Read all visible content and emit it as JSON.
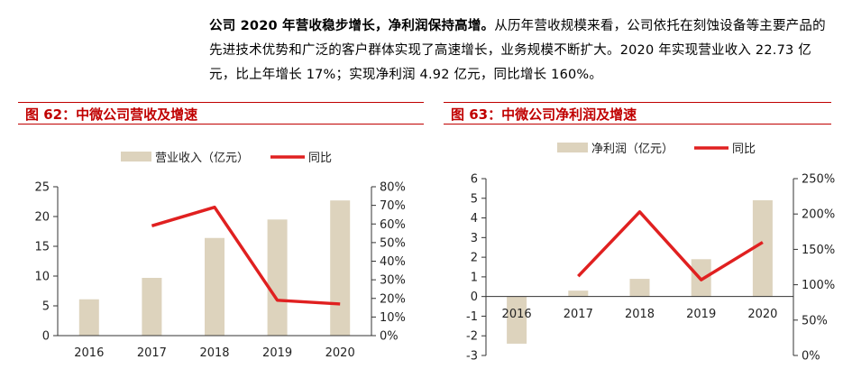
{
  "paragraph": {
    "bold": "公司 2020 年营收稳步增长，净利润保持高增。",
    "text": "从历年营收规模来看，公司依托在刻蚀设备等主要产品的先进技术优势和广泛的客户群体实现了高速增长，业务规模不断扩大。2020 年实现营业收入 22.73 亿元，比上年增长 17%；实现净利润 4.92 亿元，同比增长 160%。"
  },
  "colors": {
    "bar": "#ddd3bd",
    "line": "#e02020",
    "title": "#c00000"
  },
  "chart_data": [
    {
      "type": "bar",
      "title": "图 62：中微公司营收及增速",
      "categories": [
        "2016",
        "2017",
        "2018",
        "2019",
        "2020"
      ],
      "series": [
        {
          "name": "营业收入（亿元）",
          "type": "bar",
          "axis": "left",
          "values": [
            6.1,
            9.7,
            16.4,
            19.5,
            22.7
          ]
        },
        {
          "name": "同比",
          "type": "line",
          "axis": "right",
          "values": [
            null,
            59,
            69,
            19,
            17
          ]
        }
      ],
      "left_axis": {
        "min": 0,
        "max": 25,
        "ticks": [
          "0",
          "5",
          "10",
          "15",
          "20",
          "25"
        ]
      },
      "right_axis": {
        "min": 0,
        "max": 80,
        "ticks": [
          "0%",
          "10%",
          "20%",
          "30%",
          "40%",
          "50%",
          "60%",
          "70%",
          "80%"
        ]
      },
      "legend": "top"
    },
    {
      "type": "bar",
      "title": "图 63：中微公司净利润及增速",
      "categories": [
        "2016",
        "2017",
        "2018",
        "2019",
        "2020"
      ],
      "series": [
        {
          "name": "净利润（亿元）",
          "type": "bar",
          "axis": "left",
          "values": [
            -2.4,
            0.3,
            0.9,
            1.9,
            4.9
          ]
        },
        {
          "name": "同比",
          "type": "line",
          "axis": "right",
          "values": [
            null,
            112,
            203,
            107,
            160
          ]
        }
      ],
      "left_axis": {
        "min": -3,
        "max": 6,
        "ticks": [
          "-3",
          "-2",
          "-1",
          "0",
          "1",
          "2",
          "3",
          "4",
          "5",
          "6"
        ]
      },
      "right_axis": {
        "min": 0,
        "max": 250,
        "ticks": [
          "0%",
          "50%",
          "100%",
          "150%",
          "200%",
          "250%"
        ]
      },
      "legend": "top"
    }
  ]
}
